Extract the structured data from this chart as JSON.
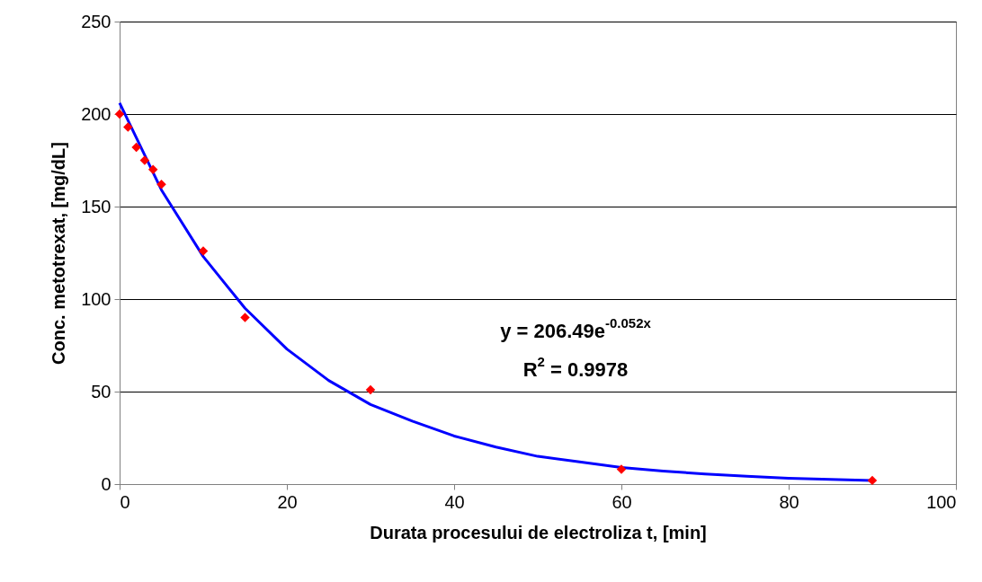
{
  "chart_data": {
    "type": "scatter",
    "xlabel": "Durata procesului de electroliza t, [min]",
    "ylabel": "Conc. metotrexat, [mg/dL]",
    "xlim": [
      0,
      100
    ],
    "xticks": [
      0,
      20,
      40,
      60,
      80,
      100
    ],
    "ylim": [
      0,
      250
    ],
    "yticks": [
      0,
      50,
      100,
      150,
      200,
      250
    ],
    "grid": "y",
    "annotations": [
      "y = 206.49e$^{-0.052x}$",
      "R$^{2}$ = 0.9978"
    ],
    "series": [
      {
        "marker": "diamond",
        "color": "#ff0000",
        "x": [
          0,
          1,
          2,
          3,
          4,
          5,
          10,
          15,
          30,
          60,
          90
        ],
        "values": [
          200,
          193,
          182,
          175,
          170,
          162,
          126,
          90,
          51,
          8,
          2
        ]
      },
      {
        "type": "line",
        "color": "#0000ff",
        "x": [
          0,
          5,
          10,
          15,
          20,
          25,
          30,
          35,
          40,
          45,
          50,
          55,
          60,
          65,
          70,
          75,
          80,
          85,
          90
        ],
        "values": [
          206,
          159,
          123,
          95,
          73,
          56,
          43,
          34,
          26,
          20,
          15,
          12,
          9,
          7,
          5.5,
          4.2,
          3.2,
          2.5,
          1.9
        ]
      }
    ]
  }
}
